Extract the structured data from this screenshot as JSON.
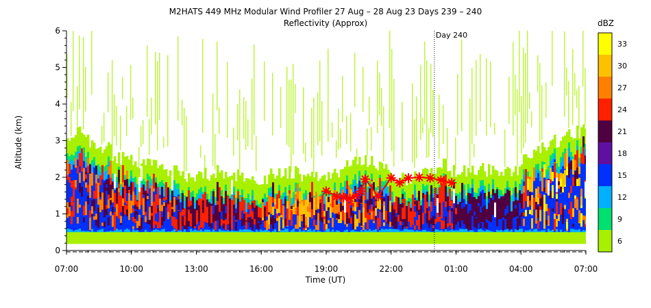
{
  "chart_data": {
    "type": "heatmap",
    "title": "M2HATS 449 MHz Modular Wind Profiler  27 Aug – 28 Aug 23 Days 239 – 240",
    "subtitle": "Reflectivity (Approx)",
    "xlabel": "Time (UT)",
    "ylabel": "Altitude (km)",
    "x_ticks": [
      "07:00",
      "10:00",
      "13:00",
      "16:00",
      "19:00",
      "22:00",
      "01:00",
      "04:00",
      "07:00"
    ],
    "x_range_hours": [
      0,
      24
    ],
    "y_ticks": [
      "0",
      "1",
      "2",
      "3",
      "4",
      "5",
      "6"
    ],
    "ylim": [
      0,
      6
    ],
    "day_marker": {
      "label": "Day 240",
      "x_hours": 17
    },
    "colorbar": {
      "label": "dBZ",
      "ticks": [
        "33",
        "30",
        "27",
        "24",
        "21",
        "18",
        "15",
        "12",
        "9",
        "6"
      ],
      "colors": [
        "#ffff00",
        "#ffc000",
        "#ff8000",
        "#ff2000",
        "#500040",
        "#6010a0",
        "#0030ff",
        "#00b0ff",
        "#00e070",
        "#a8f000"
      ],
      "levels": [
        33,
        30,
        27,
        24,
        21,
        18,
        15,
        12,
        9,
        6
      ]
    },
    "series": [
      {
        "marker": "asterisk",
        "color": "#ff0000",
        "points": [
          [
            12.0,
            1.62
          ],
          [
            12.5,
            1.48
          ],
          [
            12.8,
            1.45
          ],
          [
            13.1,
            1.42
          ],
          [
            13.4,
            1.5
          ],
          [
            13.6,
            1.62
          ],
          [
            13.8,
            1.95
          ],
          [
            14.4,
            1.48
          ],
          [
            15.0,
            1.98
          ],
          [
            15.4,
            1.85
          ],
          [
            15.8,
            1.98
          ],
          [
            16.3,
            2.0
          ],
          [
            16.8,
            1.98
          ],
          [
            17.3,
            1.92
          ],
          [
            17.8,
            1.85
          ]
        ]
      }
    ]
  }
}
